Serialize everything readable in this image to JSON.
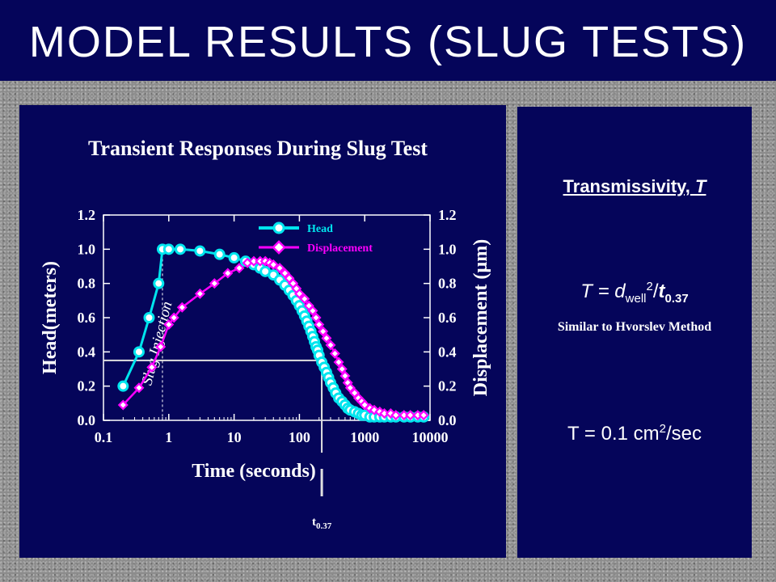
{
  "slide": {
    "title": "MODEL RESULTS (SLUG TESTS)"
  },
  "right_panel": {
    "heading_main": "Transmissivity,",
    "heading_symbol": "T",
    "formula_prefix": "T = ",
    "formula_d": "d",
    "formula_well": "well",
    "formula_exp": "2",
    "formula_slash": "/",
    "formula_t": "t",
    "formula_t_sub": "0.37",
    "note": "Similar to Hvorslev Method",
    "result_prefix": "T = 0.1 cm",
    "result_exp": "2",
    "result_suffix": "/sec"
  },
  "chart_data": {
    "type": "scatter",
    "title": "Transient Responses During Slug Test",
    "xlabel": "Time (seconds)",
    "ylabel": "Head(meters)",
    "y2label": "Displacement (µm)",
    "xscale": "log",
    "xlim": [
      0.1,
      10000
    ],
    "ylim": [
      0,
      1.2
    ],
    "y2lim": [
      0,
      1.2
    ],
    "x_ticks": [
      "0.1",
      "1",
      "10",
      "100",
      "1000",
      "10000"
    ],
    "y_ticks": [
      "0.0",
      "0.2",
      "0.4",
      "0.6",
      "0.8",
      "1.0",
      "1.2"
    ],
    "y2_ticks": [
      "0.0",
      "0.2",
      "0.4",
      "0.6",
      "0.8",
      "1.0",
      "1.2"
    ],
    "legend_position": "top-right",
    "annotations": {
      "slug_injection": "Slug Injection",
      "t037_base": "t",
      "t037_sub": "0.37",
      "slug_injection_time": 0.8,
      "t037_time": 220,
      "t037_level": 0.35
    },
    "series": [
      {
        "name": "Head",
        "color": "#00e5ee",
        "marker": "circle",
        "axis": "left",
        "x": [
          0.2,
          0.35,
          0.5,
          0.7,
          0.8,
          1.0,
          1.5,
          3,
          6,
          10,
          15,
          20,
          25,
          30,
          40,
          50,
          60,
          70,
          80,
          90,
          100,
          110,
          120,
          130,
          140,
          150,
          160,
          170,
          180,
          190,
          200,
          220,
          240,
          260,
          280,
          300,
          330,
          360,
          400,
          450,
          500,
          550,
          600,
          700,
          800,
          900,
          1000,
          1200,
          1400,
          1700,
          2000,
          2500,
          3000,
          4000,
          5000,
          6500,
          8000
        ],
        "y": [
          0.2,
          0.4,
          0.6,
          0.8,
          1.0,
          1.0,
          1.0,
          0.99,
          0.97,
          0.95,
          0.93,
          0.91,
          0.89,
          0.87,
          0.85,
          0.82,
          0.79,
          0.76,
          0.73,
          0.7,
          0.67,
          0.64,
          0.61,
          0.58,
          0.55,
          0.52,
          0.49,
          0.46,
          0.43,
          0.41,
          0.38,
          0.34,
          0.31,
          0.28,
          0.25,
          0.22,
          0.19,
          0.16,
          0.13,
          0.11,
          0.09,
          0.07,
          0.06,
          0.05,
          0.04,
          0.03,
          0.03,
          0.02,
          0.02,
          0.02,
          0.02,
          0.02,
          0.02,
          0.02,
          0.02,
          0.02,
          0.02
        ]
      },
      {
        "name": "Displacement",
        "color": "#ff00ff",
        "marker": "diamond",
        "axis": "right",
        "x": [
          0.2,
          0.35,
          0.55,
          0.75,
          1.0,
          1.2,
          1.6,
          3,
          5,
          8,
          12,
          16,
          20,
          25,
          30,
          35,
          40,
          50,
          60,
          70,
          80,
          90,
          100,
          120,
          140,
          160,
          180,
          200,
          230,
          260,
          300,
          350,
          400,
          450,
          500,
          550,
          600,
          700,
          800,
          900,
          1000,
          1200,
          1400,
          1700,
          2000,
          2500,
          3000,
          4000,
          5000,
          6500,
          8000
        ],
        "y": [
          0.09,
          0.19,
          0.31,
          0.43,
          0.56,
          0.6,
          0.66,
          0.74,
          0.8,
          0.86,
          0.89,
          0.92,
          0.93,
          0.93,
          0.93,
          0.92,
          0.91,
          0.89,
          0.86,
          0.83,
          0.8,
          0.77,
          0.74,
          0.71,
          0.67,
          0.64,
          0.6,
          0.56,
          0.52,
          0.48,
          0.44,
          0.39,
          0.34,
          0.3,
          0.26,
          0.22,
          0.19,
          0.16,
          0.13,
          0.11,
          0.09,
          0.07,
          0.06,
          0.05,
          0.04,
          0.04,
          0.03,
          0.03,
          0.03,
          0.03,
          0.03
        ]
      }
    ]
  }
}
